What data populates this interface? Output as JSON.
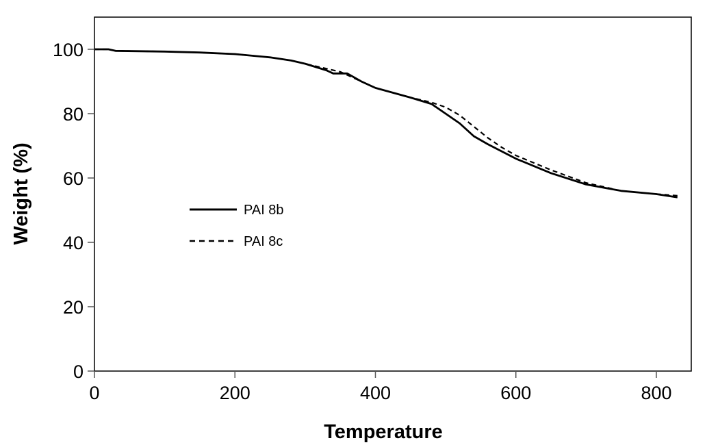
{
  "chart_data": {
    "type": "line",
    "title": "",
    "xlabel": "Temperature",
    "ylabel": "Weight (%)",
    "xlim": [
      0,
      850
    ],
    "ylim": [
      0,
      110
    ],
    "xticks": [
      0,
      200,
      400,
      600,
      800
    ],
    "yticks": [
      0,
      20,
      40,
      60,
      80,
      100
    ],
    "grid": false,
    "legend_position": "center-left",
    "series": [
      {
        "name": "PAI 8b",
        "style": "solid",
        "x": [
          0,
          20,
          30,
          100,
          150,
          200,
          250,
          280,
          300,
          330,
          340,
          360,
          380,
          400,
          450,
          480,
          500,
          520,
          540,
          560,
          600,
          650,
          700,
          750,
          800,
          830
        ],
        "y": [
          100,
          100,
          99.5,
          99.3,
          99,
          98.5,
          97.5,
          96.5,
          95.5,
          93.5,
          92.5,
          92.5,
          90,
          88,
          85,
          83,
          80,
          77,
          73,
          70.5,
          66,
          61.5,
          58,
          56,
          55,
          54
        ]
      },
      {
        "name": "PAI 8c",
        "style": "dashed",
        "x": [
          0,
          20,
          30,
          100,
          150,
          200,
          250,
          280,
          300,
          330,
          350,
          380,
          400,
          450,
          470,
          480,
          500,
          520,
          540,
          560,
          580,
          600,
          650,
          700,
          750,
          800,
          830
        ],
        "y": [
          100,
          100,
          99.5,
          99.3,
          99,
          98.5,
          97.5,
          96.5,
          95.5,
          94,
          93,
          90,
          88,
          85,
          84,
          83.5,
          82,
          79.5,
          76,
          72.5,
          69.5,
          67,
          62.5,
          58.5,
          56,
          55,
          54.5
        ]
      }
    ]
  }
}
